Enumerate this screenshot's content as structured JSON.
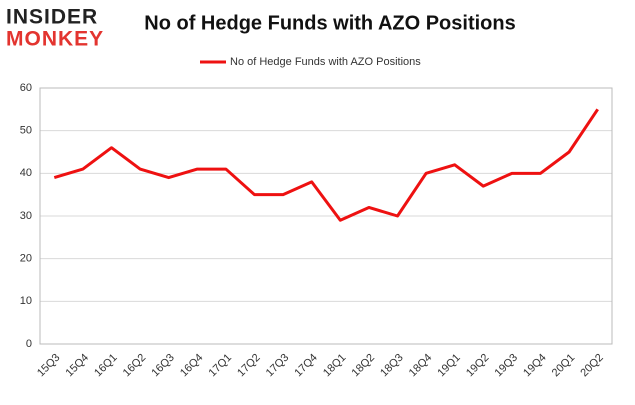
{
  "chart_data": {
    "type": "line",
    "logo": [
      "INSIDER",
      "MONKEY"
    ],
    "title": "No of Hedge Funds with AZO Positions",
    "categories": [
      "15Q3",
      "15Q4",
      "16Q1",
      "16Q2",
      "16Q3",
      "16Q4",
      "17Q1",
      "17Q2",
      "17Q3",
      "17Q4",
      "18Q1",
      "18Q2",
      "18Q3",
      "18Q4",
      "19Q1",
      "19Q2",
      "19Q3",
      "19Q4",
      "20Q1",
      "20Q2"
    ],
    "series": [
      {
        "name": "No of Hedge Funds with AZO Positions",
        "color": "#ee1111",
        "values": [
          39,
          41,
          46,
          41,
          39,
          41,
          41,
          35,
          35,
          38,
          29,
          32,
          30,
          40,
          42,
          37,
          40,
          40,
          45,
          55
        ]
      }
    ],
    "ylim": [
      0,
      60
    ],
    "yticks": [
      0,
      10,
      20,
      30,
      40,
      50,
      60
    ],
    "grid": true,
    "legend": "top"
  }
}
